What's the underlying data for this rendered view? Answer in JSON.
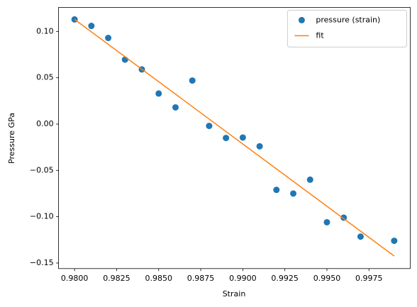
{
  "chart_data": {
    "type": "scatter",
    "xlabel": "Strain",
    "ylabel": "Pressure GPa",
    "xlim": [
      0.97905,
      0.99995
    ],
    "ylim": [
      -0.156,
      0.126
    ],
    "xticks": [
      {
        "value": 0.98,
        "label": "0.9800"
      },
      {
        "value": 0.9825,
        "label": "0.9825"
      },
      {
        "value": 0.985,
        "label": "0.9850"
      },
      {
        "value": 0.9875,
        "label": "0.9875"
      },
      {
        "value": 0.99,
        "label": "0.9900"
      },
      {
        "value": 0.9925,
        "label": "0.9925"
      },
      {
        "value": 0.995,
        "label": "0.9950"
      },
      {
        "value": 0.9975,
        "label": "0.9975"
      }
    ],
    "yticks": [
      {
        "value": -0.15,
        "label": "−0.15"
      },
      {
        "value": -0.1,
        "label": "−0.10"
      },
      {
        "value": -0.05,
        "label": "−0.05"
      },
      {
        "value": 0,
        "label": "0.00"
      },
      0.05,
      {
        "value": 0.1,
        "label": "0.10"
      }
    ],
    "legend": "upper right",
    "series": [
      {
        "name": "pressure (strain)",
        "type": "scatter",
        "color": "#1f77b4",
        "x": [
          0.98,
          0.981,
          0.982,
          0.983,
          0.984,
          0.985,
          0.986,
          0.987,
          0.988,
          0.989,
          0.99,
          0.991,
          0.992,
          0.993,
          0.994,
          0.995,
          0.996,
          0.997,
          0.999
        ],
        "values": [
          0.113,
          0.106,
          0.093,
          0.0696,
          0.059,
          0.033,
          0.018,
          0.047,
          -0.002,
          -0.015,
          -0.0145,
          -0.024,
          -0.071,
          -0.075,
          -0.06,
          -0.106,
          -0.101,
          -0.1215,
          -0.126
        ]
      },
      {
        "name": "fit",
        "type": "line",
        "color": "#ff7f0e",
        "x": [
          0.98,
          0.999
        ],
        "values": [
          0.113,
          -0.1425
        ]
      }
    ]
  }
}
